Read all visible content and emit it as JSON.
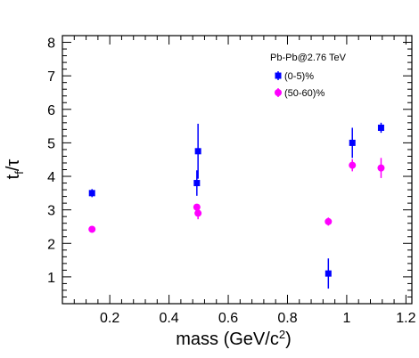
{
  "chart_data": {
    "type": "scatter",
    "xlabel": "mass (GeV/c²)",
    "ylabel": "tf/τ",
    "xlim": [
      0.04,
      1.22
    ],
    "ylim": [
      0.2,
      8.2
    ],
    "x_ticks": [
      "0.2",
      "0.4",
      "0.6",
      "0.8",
      "1",
      "1.2"
    ],
    "y_ticks": [
      "1",
      "2",
      "3",
      "4",
      "5",
      "6",
      "7",
      "8"
    ],
    "grid": false,
    "legend_title": "Pb-Pb@2.76 TeV",
    "legend_position": "top-right",
    "series": [
      {
        "name": "(0-5)%",
        "color": "#0000ff",
        "marker": "square",
        "points": [
          {
            "x": 0.14,
            "y": 3.5,
            "err": 0.12
          },
          {
            "x": 0.494,
            "y": 3.8,
            "err": 0.38
          },
          {
            "x": 0.498,
            "y": 4.75,
            "err": 0.82
          },
          {
            "x": 0.938,
            "y": 1.1,
            "err": 0.45
          },
          {
            "x": 1.019,
            "y": 5.0,
            "err": 0.45
          },
          {
            "x": 1.116,
            "y": 5.45,
            "err": 0.15
          }
        ]
      },
      {
        "name": "(50-60)%",
        "color": "#ff00ff",
        "marker": "circle",
        "points": [
          {
            "x": 0.14,
            "y": 2.42,
            "err": 0.05
          },
          {
            "x": 0.494,
            "y": 3.08,
            "err": 0.05
          },
          {
            "x": 0.498,
            "y": 2.9,
            "err": 0.18
          },
          {
            "x": 0.938,
            "y": 2.65,
            "err": 0.12
          },
          {
            "x": 1.019,
            "y": 4.33,
            "err": 0.18
          },
          {
            "x": 1.116,
            "y": 4.25,
            "err": 0.3
          }
        ]
      }
    ]
  }
}
